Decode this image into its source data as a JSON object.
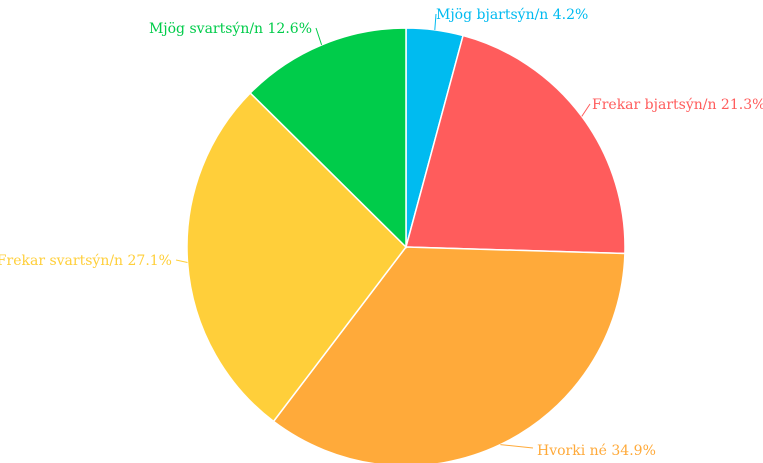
{
  "chart_data": {
    "type": "pie",
    "title": "",
    "slices": [
      {
        "label": "Mjög bjartsýn/n 4.2%",
        "value": 4.2,
        "color": "#00bbf0"
      },
      {
        "label": "Frekar bjartsýn/n 21.3%",
        "value": 21.3,
        "color": "#ff5c5c"
      },
      {
        "label": "Hvorki né 34.9%",
        "value": 34.9,
        "color": "#ffaa3a"
      },
      {
        "label": "Frekar svartsýn/n 27.1%",
        "value": 27.1,
        "color": "#ffcf3a"
      },
      {
        "label": "Mjög svartsýn/n 12.6%",
        "value": 12.6,
        "color": "#00cc4a"
      }
    ],
    "legend": "none"
  }
}
